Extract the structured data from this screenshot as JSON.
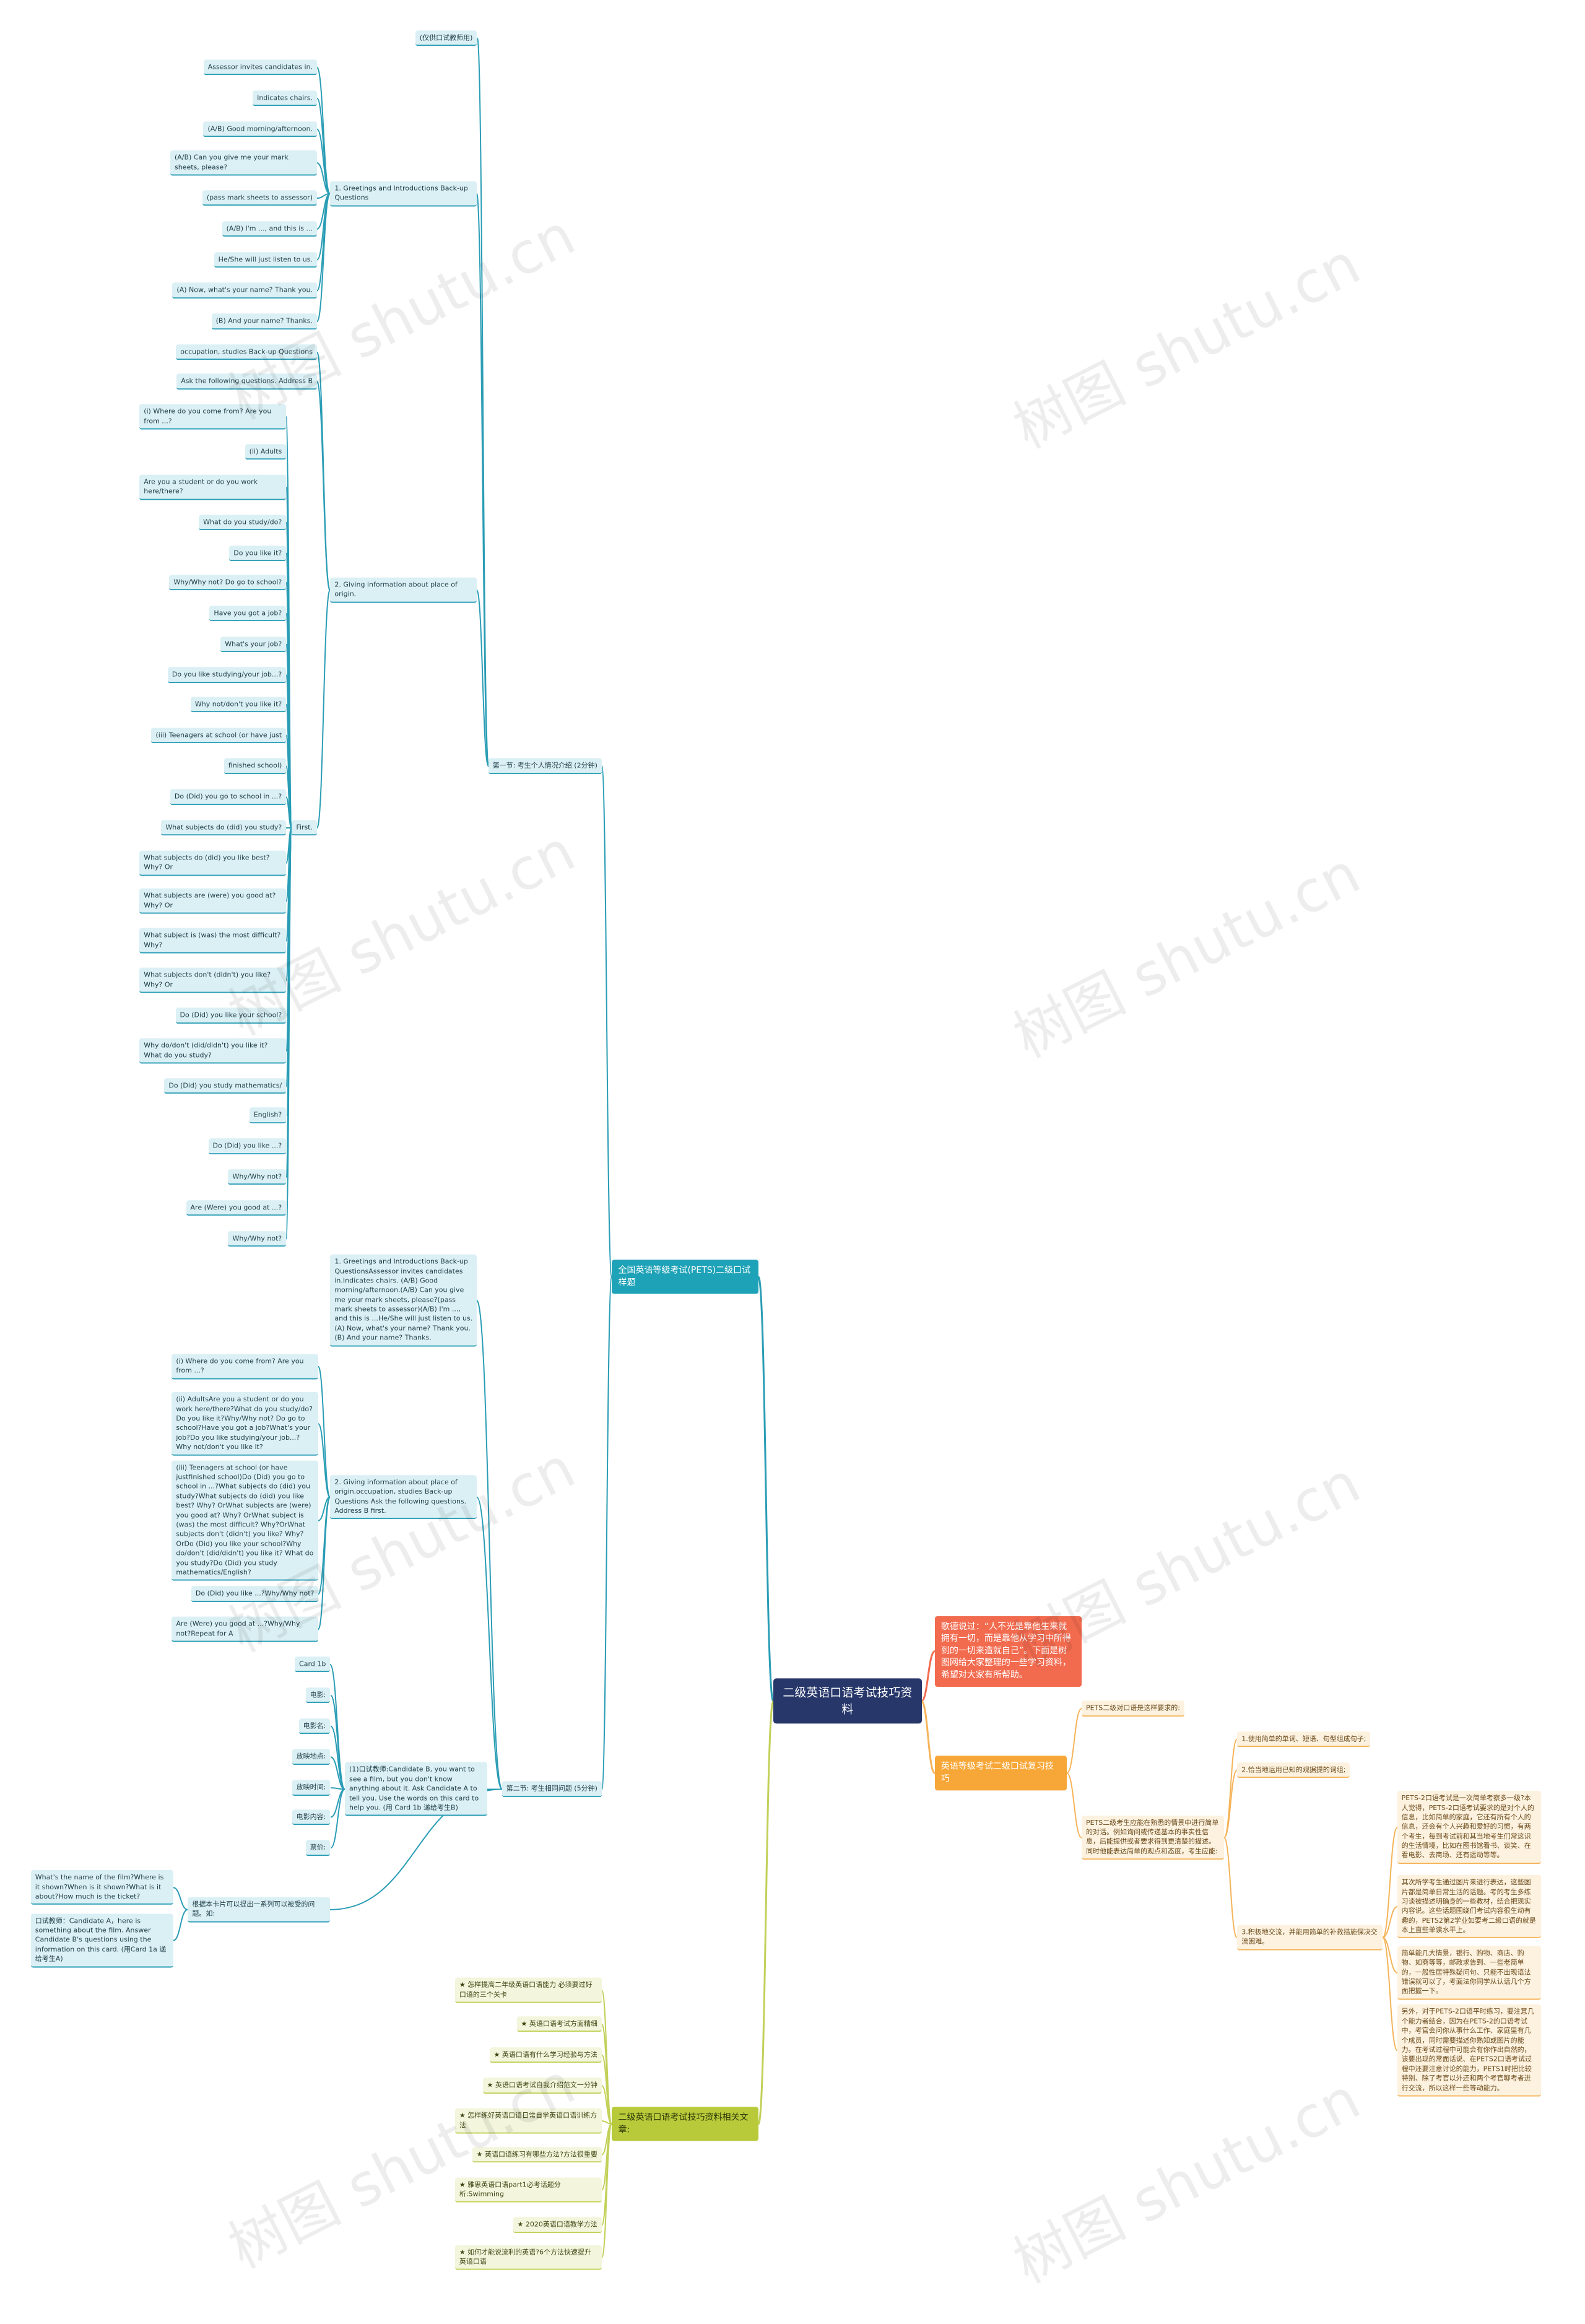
{
  "watermark": "树图 shutu.cn",
  "root": {
    "text": "二级英语口语考试技巧资料",
    "children": [
      {
        "text": "歌德说过：“人不光是靠他生来就拥有一切，而是靠他从学习中所得到的一切来造就自己”。下面是树图网给大家整理的一些学习资料，希望对大家有所帮助。",
        "children": []
      },
      {
        "text": "英语等级考试二级口试复习技巧",
        "children": [
          {
            "text": "PETS二级对口语是这样要求的:",
            "children": []
          },
          {
            "text": "PETS二级考生应能在熟悉的情景中进行简单的对话。例如询问或传递基本的事实性信息，后能提供或者要求得到更清楚的描述。同时他能表达简单的观点和态度，考生应能:",
            "children": [
              {
                "text": "1.使用简单的单词、短语、句型组成句子;",
                "children": []
              },
              {
                "text": "2.恰当地运用已知的观据提的词组;",
                "children": []
              },
              {
                "text": "3.积极地交流，并能用简单的补救措施保决交流困难。",
                "children": [
                  {
                    "text": "PETS-2口语考试是一次简单考察多一级?本人觉得，PETS-2口语考试要求的是对个人的信息，比如简单的家庭，它还有所有个人的信息，还会有个人兴趣和爱好的习惯，有两个考生，每到考试前和其当地考生们常这识的生活情境，比如在图书馆看书、谈笑、在看电影、去商场、还有运动等等。",
                    "children": []
                  },
                  {
                    "text": "其次所学考生通过图片来进行表达，这些图片都是简单日常生活的话题。考的考生多练习谈被描述明确身的一些教材，结合把现实内容说。这些话题围绕们考试内容很生动有趣的，PETS2第2学业如要考二级口语的就是本上直些单读水平上。",
                    "children": []
                  },
                  {
                    "text": "简单能几大情景，银行、购物、商店、购物、如商等等，邮政求告到、一些老简单的，一般性居特殊疑问句、只能不出现语法错误就可以了，考面法你同学从认话几个方面把握一下。",
                    "children": []
                  },
                  {
                    "text": "另外，对于PETS-2口语平时练习，要注意几个能力者结合，因为在PETS-2的口语考试中，考官会问你从事什么工作、家庭里有几个成员，同时需要描述你熟知或图片的能力。在考试过程中可能会有你作出自然的，该要出现的常面话说、在PETS2口语考试过程中还要注意讨论的能力，PETS1时把比较特别、除了考官以外还和两个考官聊考者进行交流，所以这样一些等动能力。",
                    "children": []
                  }
                ]
              }
            ]
          }
        ]
      },
      {
        "text": "全国英语等级考试(PETS)二级口试样题",
        "children": [
          {
            "text": "第一节: 考生个人情况介绍 (2分钟)",
            "children": [
              {
                "text": "(仅供口试教师用)",
                "children": []
              },
              {
                "text": "1. Greetings and Introductions Back-up Questions",
                "children": [
                  {
                    "text": "Assessor invites candidates in.",
                    "children": []
                  },
                  {
                    "text": "Indicates chairs.",
                    "children": []
                  },
                  {
                    "text": "(A/B) Good morning/afternoon.",
                    "children": []
                  },
                  {
                    "text": "(A/B) Can you give me your mark sheets, please?",
                    "children": []
                  },
                  {
                    "text": "(pass mark sheets to assessor)",
                    "children": []
                  },
                  {
                    "text": "(A/B) I'm ..., and this is ...",
                    "children": []
                  },
                  {
                    "text": "He/She will just listen to us.",
                    "children": []
                  },
                  {
                    "text": "(A) Now, what's your name? Thank you.",
                    "children": []
                  },
                  {
                    "text": "(B) And your name? Thanks.",
                    "children": []
                  }
                ]
              },
              {
                "text": "2. Giving information about place of origin.",
                "children": [
                  {
                    "text": "occupation, studies Back-up Questions",
                    "children": []
                  },
                  {
                    "text": "Ask the following questions. Address B",
                    "children": []
                  },
                  {
                    "text": "First.",
                    "children": [
                      {
                        "text": "(i) Where do you come from? Are you from ...?",
                        "children": []
                      },
                      {
                        "text": "(ii) Adults",
                        "children": []
                      },
                      {
                        "text": "Are you a student or do you work here/there?",
                        "children": []
                      },
                      {
                        "text": "What do you study/do?",
                        "children": []
                      },
                      {
                        "text": "Do you like it?",
                        "children": []
                      },
                      {
                        "text": "Why/Why not? Do go to school?",
                        "children": []
                      },
                      {
                        "text": "Have you got a job?",
                        "children": []
                      },
                      {
                        "text": "What's your job?",
                        "children": []
                      },
                      {
                        "text": "Do you like studying/your job...?",
                        "children": []
                      },
                      {
                        "text": "Why not/don't you like it?",
                        "children": []
                      },
                      {
                        "text": "(iii) Teenagers at school (or have just",
                        "children": []
                      },
                      {
                        "text": "finished school)",
                        "children": []
                      },
                      {
                        "text": "Do (Did) you go to school in ...?",
                        "children": []
                      },
                      {
                        "text": "What subjects do (did) you study?",
                        "children": []
                      },
                      {
                        "text": "What subjects do (did) you like best? Why? Or",
                        "children": []
                      },
                      {
                        "text": "What subjects are (were) you good at? Why? Or",
                        "children": []
                      },
                      {
                        "text": "What subject is (was) the most difficult? Why?",
                        "children": []
                      },
                      {
                        "text": "What subjects don't (didn't) you like? Why? Or",
                        "children": []
                      },
                      {
                        "text": "Do (Did) you like your school?",
                        "children": []
                      },
                      {
                        "text": "Why do/don't (did/didn't) you like it? What do you study?",
                        "children": []
                      },
                      {
                        "text": "Do (Did) you study mathematics/",
                        "children": []
                      },
                      {
                        "text": "English?",
                        "children": []
                      },
                      {
                        "text": "Do (Did) you like ...?",
                        "children": []
                      },
                      {
                        "text": "Why/Why not?",
                        "children": []
                      },
                      {
                        "text": "Are (Were) you good at ...?",
                        "children": []
                      },
                      {
                        "text": "Why/Why not?",
                        "children": []
                      }
                    ]
                  }
                ]
              }
            ]
          },
          {
            "text": "第二节: 考生相同问题 (5分钟)",
            "children": [
              {
                "text": "1. Greetings and Introductions Back-up QuestionsAssessor invites candidates in.Indicates chairs. (A/B) Good morning/afternoon.(A/B) Can you give me your mark sheets, please?(pass mark sheets to assessor)(A/B) I'm ..., and this is ...He/She will just listen to us. (A) Now, what's your name? Thank you.(B) And your name? Thanks.",
                "children": []
              },
              {
                "text": "2. Giving information about place of origin.occupation, studies Back-up Questions Ask the following questions. Address B first.",
                "children": [
                  {
                    "text": "(i) Where do you come from? Are you from ...?",
                    "children": []
                  },
                  {
                    "text": "(ii) AdultsAre you a student or do you work here/there?What do you study/do?Do you like it?Why/Why not? Do go to school?Have you got a job?What's your job?Do you like studying/your job...?Why not/don't you like it?",
                    "children": []
                  },
                  {
                    "text": "(iii) Teenagers at school (or have justfinished school)Do (Did) you go to school in ...?What subjects do (did) you study?What subjects do (did) you like best? Why? OrWhat subjects are (were) you good at? Why? OrWhat subject is (was) the most difficult? Why?OrWhat subjects don't (didn't) you like? Why? OrDo (Did) you like your school?Why do/don't (did/didn't) you like it? What do you study?Do (Did) you study mathematics/English?",
                    "children": []
                  },
                  {
                    "text": "Do (Did) you like ...?Why/Why not?",
                    "children": []
                  },
                  {
                    "text": "Are (Were) you good at ...?Why/Why not?Repeat for A",
                    "children": []
                  }
                ]
              },
              {
                "text": "(1)口试教师:Candidate B, you want to see a film, but you don't know anything about it. Ask Candidate A to tell you. Use the words on this card to help you. (用 Card 1b 递给考生B)",
                "children": [
                  {
                    "text": "Card 1b",
                    "children": []
                  },
                  {
                    "text": "电影:",
                    "children": []
                  },
                  {
                    "text": "电影名:",
                    "children": []
                  },
                  {
                    "text": "放映地点:",
                    "children": []
                  },
                  {
                    "text": "放映时间:",
                    "children": []
                  },
                  {
                    "text": "电影内容:",
                    "children": []
                  },
                  {
                    "text": "票价:",
                    "children": []
                  }
                ]
              },
              {
                "text": "根据本卡片可以提出一系列可以被受的问题。如:",
                "children": [
                  {
                    "text": "What's the name of the film?Where is it shown?When is it shown?What is it about?How much is the ticket?",
                    "children": []
                  },
                  {
                    "text": "口试教师：Candidate A，here is something about the film. Answer Candidate B's questions using the information on this card. (用Card 1a 递给考生A)",
                    "children": []
                  }
                ]
              }
            ]
          }
        ]
      },
      {
        "text": "二级英语口语考试技巧资料相关文章:",
        "children": [
          {
            "text": "★ 怎样提高二年级英语口语能力 必须要过好口语的三个关卡",
            "children": []
          },
          {
            "text": "★ 英语口语考试方面精细",
            "children": []
          },
          {
            "text": "★ 英语口语有什么学习经验与方法",
            "children": []
          },
          {
            "text": "★ 英语口语考试自我介绍范文一分钟",
            "children": []
          },
          {
            "text": "★ 怎样练好英语口语日常自学英语口语训练方法",
            "children": []
          },
          {
            "text": "★ 英语口语练习有哪些方法?方法很重要",
            "children": []
          },
          {
            "text": "★ 雅思英语口语part1必考话题分析:Swimming",
            "children": []
          },
          {
            "text": "★ 2020英语口语教学方法",
            "children": []
          },
          {
            "text": "★ 如何才能说流利的英语?6个方法快速提升英语口语",
            "children": []
          }
        ]
      }
    ]
  }
}
